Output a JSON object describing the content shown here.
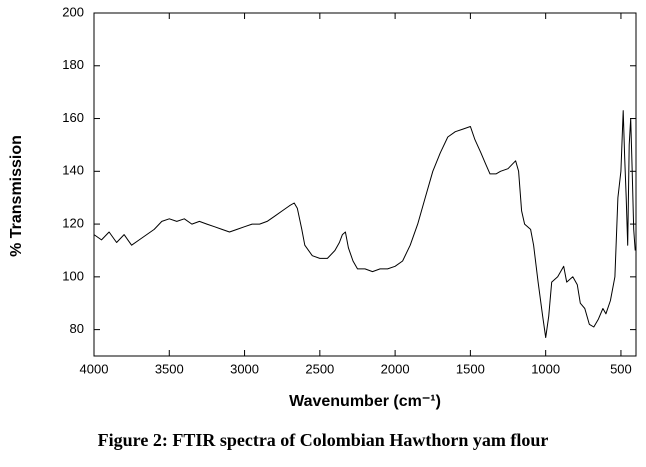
{
  "chart_data": {
    "type": "line",
    "ylabel": "% Transmission",
    "xlabel": "Wavenumber (cm⁻¹)",
    "caption": "Figure 2: FTIR spectra of Colombian Hawthorn yam flour",
    "color": "#000000",
    "xlim": [
      4000,
      400
    ],
    "ylim": [
      70,
      200
    ],
    "xticks": [
      4000,
      3500,
      3000,
      2500,
      2000,
      1500,
      1000,
      500
    ],
    "yticks": [
      80,
      100,
      120,
      140,
      160,
      180,
      200
    ],
    "x": [
      4000,
      3950,
      3900,
      3850,
      3800,
      3750,
      3700,
      3650,
      3600,
      3550,
      3500,
      3450,
      3400,
      3350,
      3300,
      3250,
      3200,
      3150,
      3100,
      3050,
      3000,
      2950,
      2900,
      2850,
      2800,
      2750,
      2700,
      2670,
      2650,
      2620,
      2600,
      2550,
      2500,
      2450,
      2400,
      2370,
      2350,
      2330,
      2310,
      2280,
      2250,
      2200,
      2150,
      2100,
      2050,
      2000,
      1950,
      1900,
      1850,
      1800,
      1750,
      1700,
      1650,
      1600,
      1550,
      1500,
      1470,
      1430,
      1400,
      1370,
      1330,
      1300,
      1250,
      1200,
      1180,
      1160,
      1140,
      1100,
      1080,
      1050,
      1020,
      1000,
      980,
      960,
      920,
      880,
      860,
      820,
      790,
      770,
      740,
      710,
      680,
      650,
      620,
      600,
      570,
      540,
      520,
      500,
      485,
      475,
      465,
      455,
      445,
      435,
      425,
      415,
      405
    ],
    "values": [
      116,
      114,
      117,
      113,
      116,
      112,
      114,
      116,
      118,
      121,
      122,
      121,
      122,
      120,
      121,
      120,
      119,
      118,
      117,
      118,
      119,
      120,
      120,
      121,
      123,
      125,
      127,
      128,
      126,
      118,
      112,
      108,
      107,
      107,
      110,
      113,
      116,
      117,
      111,
      106,
      103,
      103,
      102,
      103,
      103,
      104,
      106,
      112,
      120,
      130,
      140,
      147,
      153,
      155,
      156,
      157,
      152,
      147,
      143,
      139,
      139,
      140,
      141,
      144,
      140,
      125,
      120,
      118,
      112,
      98,
      85,
      77,
      85,
      98,
      100,
      104,
      98,
      100,
      97,
      90,
      88,
      82,
      81,
      84,
      88,
      86,
      91,
      100,
      130,
      140,
      163,
      145,
      130,
      112,
      150,
      160,
      140,
      118,
      110
    ]
  }
}
